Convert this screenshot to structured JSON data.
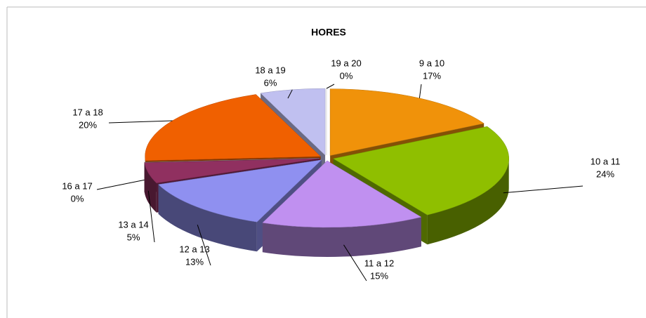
{
  "chart_data": {
    "type": "pie",
    "title": "HORES",
    "categories": [
      "9 a 10",
      "10 a 11",
      "11 a 12",
      "12 a 13",
      "13 a 14",
      "16 a 17",
      "17 a 18",
      "18 a 19",
      "19 a 20"
    ],
    "values": [
      17,
      24,
      15,
      13,
      5,
      0,
      20,
      6,
      0
    ],
    "value_labels": [
      "17%",
      "24%",
      "15%",
      "13%",
      "5%",
      "0%",
      "20%",
      "6%",
      "0%"
    ],
    "colors": [
      "#f0920a",
      "#8fbf00",
      "#c090f0",
      "#8f90f0",
      "#903060",
      "#a0a0a0",
      "#f06000",
      "#c0c0f0",
      "#ffffff"
    ]
  }
}
